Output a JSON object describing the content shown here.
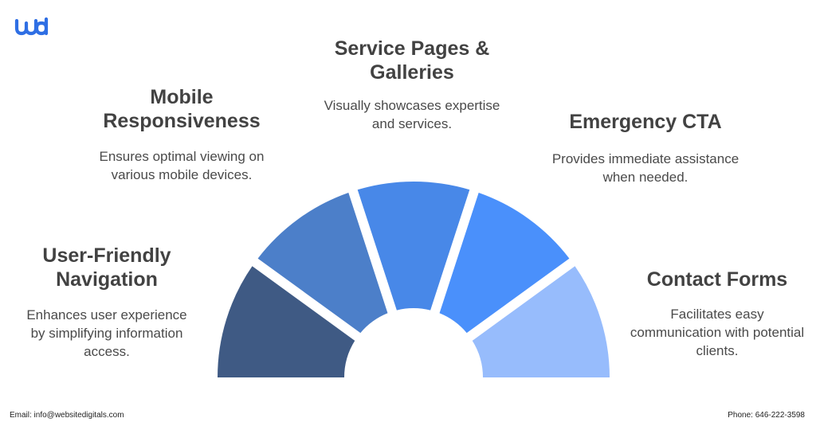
{
  "brand": {
    "logo_text": "wd",
    "accent": "#2f6fe4"
  },
  "segments": [
    {
      "title": "User-Friendly Navigation",
      "description": "Enhances user experience by simplifying information access.",
      "color": "#3f5a84"
    },
    {
      "title": "Mobile Responsiveness",
      "description": "Ensures optimal viewing on various mobile devices.",
      "color": "#4c7fc9"
    },
    {
      "title": "Service Pages & Galleries",
      "description": "Visually showcases expertise and services.",
      "color": "#4888e8"
    },
    {
      "title": "Emergency CTA",
      "description": "Provides immediate assistance when needed.",
      "color": "#4a90fb"
    },
    {
      "title": "Contact Forms",
      "description": "Facilitates easy communication with potential clients.",
      "color": "#97bcfc"
    }
  ],
  "footer": {
    "email": "Email: info@websitedigitals.com",
    "phone": "Phone: 646-222-3598"
  }
}
